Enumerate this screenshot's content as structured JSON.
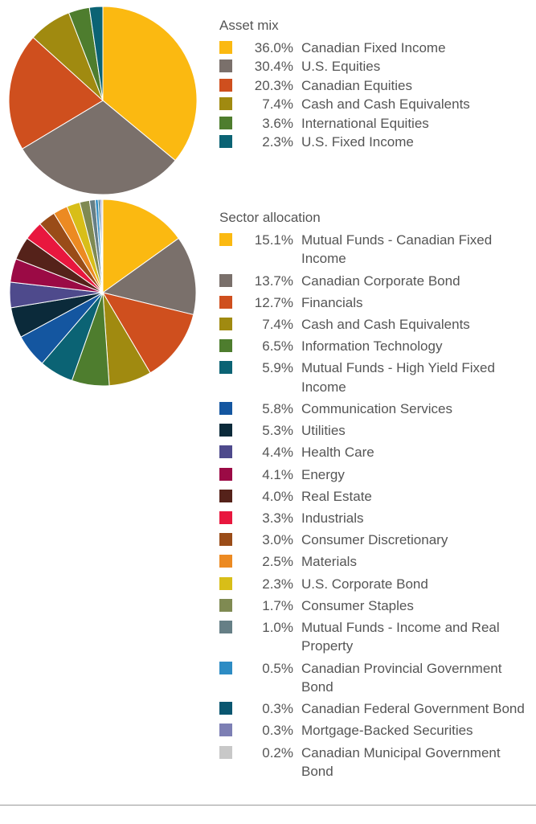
{
  "chart_data": [
    {
      "type": "pie",
      "title": "Asset mix",
      "categories": [
        "Canadian Fixed Income",
        "U.S. Equities",
        "Canadian Equities",
        "Cash and Cash Equivalents",
        "International Equities",
        "U.S. Fixed Income"
      ],
      "values": [
        36.0,
        30.4,
        20.3,
        7.4,
        3.6,
        2.3
      ],
      "value_labels": [
        "36.0%",
        "30.4%",
        "20.3%",
        "7.4%",
        "3.6%",
        "2.3%"
      ],
      "colors": [
        "#fbb911",
        "#7a706b",
        "#cf4f1e",
        "#a08a10",
        "#4e7d2e",
        "#0b6374"
      ]
    },
    {
      "type": "pie",
      "title": "Sector allocation",
      "categories": [
        "Mutual Funds - Canadian Fixed Income",
        "Canadian Corporate Bond",
        "Financials",
        "Cash and Cash Equivalents",
        "Information Technology",
        "Mutual Funds - High Yield Fixed Income",
        "Communication Services",
        "Utilities",
        "Health Care",
        "Energy",
        "Real Estate",
        "Industrials",
        "Consumer Discretionary",
        "Materials",
        "U.S. Corporate Bond",
        "Consumer Staples",
        "Mutual Funds - Income and Real Property",
        "Canadian Provincial Government Bond",
        "Canadian Federal Government Bond",
        "Mortgage-Backed Securities",
        "Canadian Municipal Government Bond"
      ],
      "values": [
        15.1,
        13.7,
        12.7,
        7.4,
        6.5,
        5.9,
        5.8,
        5.3,
        4.4,
        4.1,
        4.0,
        3.3,
        3.0,
        2.5,
        2.3,
        1.7,
        1.0,
        0.5,
        0.3,
        0.3,
        0.2
      ],
      "value_labels": [
        "15.1%",
        "13.7%",
        "12.7%",
        "7.4%",
        "6.5%",
        "5.9%",
        "5.8%",
        "5.3%",
        "4.4%",
        "4.1%",
        "4.0%",
        "3.3%",
        "3.0%",
        "2.5%",
        "2.3%",
        "1.7%",
        "1.0%",
        "0.5%",
        "0.3%",
        "0.3%",
        "0.2%"
      ],
      "colors": [
        "#fbb911",
        "#7a706b",
        "#cf4f1e",
        "#a08a10",
        "#4e7d2e",
        "#0b6374",
        "#1456a0",
        "#0b2a3a",
        "#4e4a8c",
        "#9b0a45",
        "#55221a",
        "#e8173e",
        "#9a4c18",
        "#ec8a22",
        "#d8be18",
        "#7f8a52",
        "#667f86",
        "#2d8cc4",
        "#0a5670",
        "#7d7fb4",
        "#c8c8c8"
      ]
    }
  ]
}
